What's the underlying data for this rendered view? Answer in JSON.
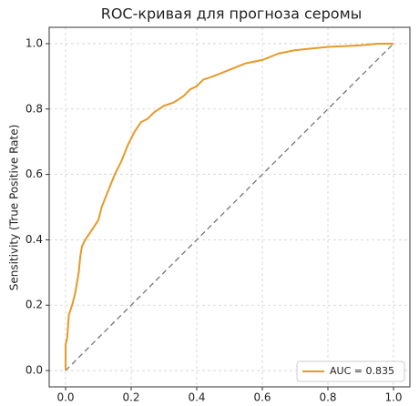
{
  "chart_data": {
    "type": "line",
    "title": "ROC-кривая для прогноза серомы",
    "y_label": "Sensitivity (True Positive Rate)",
    "x": [
      0,
      0,
      0.005,
      0.01,
      0.02,
      0.03,
      0.04,
      0.045,
      0.05,
      0.06,
      0.08,
      0.1,
      0.11,
      0.13,
      0.15,
      0.17,
      0.19,
      0.21,
      0.23,
      0.25,
      0.27,
      0.3,
      0.33,
      0.36,
      0.38,
      0.4,
      0.42,
      0.45,
      0.5,
      0.55,
      0.6,
      0.65,
      0.7,
      0.8,
      0.9,
      0.95,
      1.0
    ],
    "series": [
      {
        "name": "AUC = 0.835",
        "color": "#e69a28",
        "values": [
          0,
          0.08,
          0.1,
          0.17,
          0.2,
          0.24,
          0.3,
          0.35,
          0.38,
          0.4,
          0.43,
          0.46,
          0.5,
          0.55,
          0.6,
          0.64,
          0.69,
          0.73,
          0.76,
          0.77,
          0.79,
          0.81,
          0.82,
          0.84,
          0.86,
          0.87,
          0.89,
          0.9,
          0.92,
          0.94,
          0.95,
          0.97,
          0.98,
          0.99,
          0.995,
          1.0,
          1.0
        ]
      }
    ],
    "xlim": [
      -0.05,
      1.05
    ],
    "ylim": [
      -0.05,
      1.05
    ],
    "xticks": [
      {
        "value": 0,
        "label": "0.0"
      },
      0.2,
      0.4,
      0.6,
      0.8,
      {
        "value": 1,
        "label": "1.0"
      }
    ],
    "yticks": [
      {
        "value": 0,
        "label": "0.0"
      },
      0.2,
      0.4,
      0.6,
      0.8,
      {
        "value": 1,
        "label": "1.0"
      }
    ],
    "grid": true,
    "legend": "lower right"
  }
}
